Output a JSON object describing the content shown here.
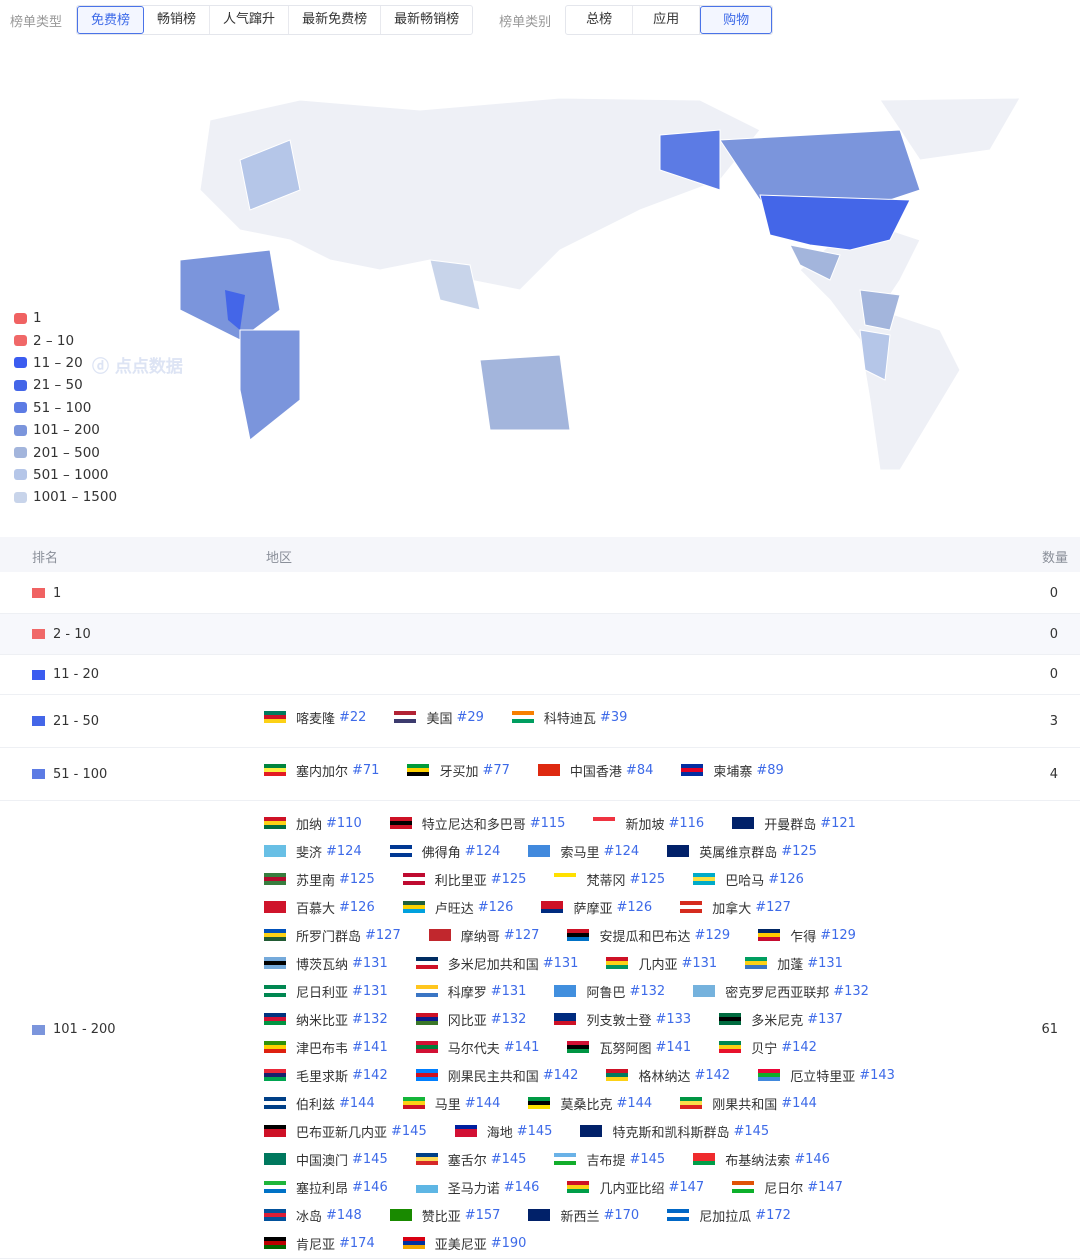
{
  "toolbar": {
    "type_label": "榜单类型",
    "types": [
      "免费榜",
      "畅销榜",
      "人气蹿升",
      "最新免费榜",
      "最新畅销榜"
    ],
    "active_type": 0,
    "cat_label": "榜单类别",
    "cats": [
      "总榜",
      "应用",
      "购物"
    ],
    "active_cat": 2
  },
  "legend": [
    {
      "label": "1",
      "color": "#f06262"
    },
    {
      "label": "2 – 10",
      "color": "#f06868"
    },
    {
      "label": "11 – 20",
      "color": "#3b5cf0"
    },
    {
      "label": "21 – 50",
      "color": "#4466e8"
    },
    {
      "label": "51 – 100",
      "color": "#5c7be4"
    },
    {
      "label": "101 – 200",
      "color": "#7b95dc"
    },
    {
      "label": "201 – 500",
      "color": "#a3b5dc"
    },
    {
      "label": "501 – 1000",
      "color": "#b5c6e8"
    },
    {
      "label": "1001 – 1500",
      "color": "#c8d4ea"
    }
  ],
  "watermark": "点点数据",
  "table": {
    "headers": [
      "排名",
      "地区",
      "数量"
    ],
    "rows": [
      {
        "range": "1",
        "color": "#f06262",
        "count": "0",
        "lines": []
      },
      {
        "range": "2 - 10",
        "color": "#f06868",
        "count": "0",
        "lines": []
      },
      {
        "range": "11 - 20",
        "color": "#3b5cf0",
        "count": "0",
        "lines": []
      },
      {
        "range": "21 - 50",
        "color": "#4466e8",
        "count": "3",
        "lines": [
          [
            [
              "喀麦隆",
              "#22",
              [
                "#007a5e",
                "#ce1126",
                "#fcd116"
              ]
            ],
            [
              "美国",
              "#29",
              [
                "#b22234",
                "#fff",
                "#3c3b6e"
              ]
            ],
            [
              "科特迪瓦",
              "#39",
              [
                "#f77f00",
                "#fff",
                "#009e60"
              ]
            ]
          ]
        ]
      },
      {
        "range": "51 - 100",
        "color": "#5c7be4",
        "count": "4",
        "lines": [
          [
            [
              "塞内加尔",
              "#71",
              [
                "#00853f",
                "#fdef42",
                "#e31b23"
              ]
            ],
            [
              "牙买加",
              "#77",
              [
                "#009b3a",
                "#fed100",
                "#000"
              ]
            ],
            [
              "中国香港",
              "#84",
              [
                "#de2910",
                "#de2910",
                "#de2910"
              ]
            ],
            [
              "柬埔寨",
              "#89",
              [
                "#032ea1",
                "#e00025",
                "#032ea1"
              ]
            ]
          ]
        ]
      },
      {
        "range": "101 - 200",
        "color": "#7b95dc",
        "count": "61",
        "lines": [
          [
            [
              "加纳",
              "#110",
              [
                "#ce1126",
                "#fcd116",
                "#006b3f"
              ]
            ],
            [
              "特立尼达和多巴哥",
              "#115",
              [
                "#ce1126",
                "#000",
                "#ce1126"
              ]
            ],
            [
              "新加坡",
              "#116",
              [
                "#ef3340",
                "#fff",
                "#fff"
              ]
            ],
            [
              "开曼群岛",
              "#121",
              [
                "#012169",
                "#012169",
                "#012169"
              ]
            ]
          ],
          [
            [
              "斐济",
              "#124",
              [
                "#68bfe5",
                "#68bfe5",
                "#68bfe5"
              ]
            ],
            [
              "佛得角",
              "#124",
              [
                "#003893",
                "#fff",
                "#003893"
              ]
            ],
            [
              "索马里",
              "#124",
              [
                "#4189dd",
                "#4189dd",
                "#4189dd"
              ]
            ],
            [
              "英属维京群岛",
              "#125",
              [
                "#012169",
                "#012169",
                "#012169"
              ]
            ]
          ],
          [
            [
              "苏里南",
              "#125",
              [
                "#377e3f",
                "#b40a2d",
                "#377e3f"
              ]
            ],
            [
              "利比里亚",
              "#125",
              [
                "#bf0a30",
                "#fff",
                "#bf0a30"
              ]
            ],
            [
              "梵蒂冈",
              "#125",
              [
                "#ffe000",
                "#fff",
                "#fff"
              ]
            ],
            [
              "巴哈马",
              "#126",
              [
                "#00abc9",
                "#fae042",
                "#00abc9"
              ]
            ]
          ],
          [
            [
              "百慕大",
              "#126",
              [
                "#cf142b",
                "#cf142b",
                "#cf142b"
              ]
            ],
            [
              "卢旺达",
              "#126",
              [
                "#20603d",
                "#fad201",
                "#00a1de"
              ]
            ],
            [
              "萨摩亚",
              "#126",
              [
                "#ce1126",
                "#ce1126",
                "#002b7f"
              ]
            ],
            [
              "加拿大",
              "#127",
              [
                "#d52b1e",
                "#fff",
                "#d52b1e"
              ]
            ]
          ],
          [
            [
              "所罗门群岛",
              "#127",
              [
                "#0051ba",
                "#fcd116",
                "#215b33"
              ]
            ],
            [
              "摩纳哥",
              "#127",
              [
                "#c1272d",
                "#c1272d",
                "#c1272d"
              ]
            ],
            [
              "安提瓜和巴布达",
              "#129",
              [
                "#ce1126",
                "#000",
                "#0072c6"
              ]
            ],
            [
              "乍得",
              "#129",
              [
                "#002664",
                "#fecb00",
                "#c60c30"
              ]
            ]
          ],
          [
            [
              "博茨瓦纳",
              "#131",
              [
                "#75aadb",
                "#000",
                "#75aadb"
              ]
            ],
            [
              "多米尼加共和国",
              "#131",
              [
                "#002d62",
                "#fff",
                "#ce1126"
              ]
            ],
            [
              "几内亚",
              "#131",
              [
                "#ce1126",
                "#fcd116",
                "#009460"
              ]
            ],
            [
              "加蓬",
              "#131",
              [
                "#009e60",
                "#fcd116",
                "#3a75c4"
              ]
            ]
          ],
          [
            [
              "尼日利亚",
              "#131",
              [
                "#008751",
                "#fff",
                "#008751"
              ]
            ],
            [
              "科摩罗",
              "#131",
              [
                "#ffc61e",
                "#fff",
                "#3a75c4"
              ]
            ],
            [
              "阿鲁巴",
              "#132",
              [
                "#418fde",
                "#418fde",
                "#418fde"
              ]
            ],
            [
              "密克罗尼西亚联邦",
              "#132",
              [
                "#75b2dd",
                "#75b2dd",
                "#75b2dd"
              ]
            ]
          ],
          [
            [
              "纳米比亚",
              "#132",
              [
                "#003580",
                "#d21034",
                "#009543"
              ]
            ],
            [
              "冈比亚",
              "#132",
              [
                "#ce1126",
                "#0c1c8c",
                "#3a7728"
              ]
            ],
            [
              "列支敦士登",
              "#133",
              [
                "#002b7f",
                "#002b7f",
                "#ce1126"
              ]
            ],
            [
              "多米尼克",
              "#137",
              [
                "#006b3f",
                "#000",
                "#006b3f"
              ]
            ]
          ],
          [
            [
              "津巴布韦",
              "#141",
              [
                "#319208",
                "#ffd200",
                "#de2010"
              ]
            ],
            [
              "马尔代夫",
              "#141",
              [
                "#d21034",
                "#007e3a",
                "#d21034"
              ]
            ],
            [
              "瓦努阿图",
              "#141",
              [
                "#d21034",
                "#000",
                "#009543"
              ]
            ],
            [
              "贝宁",
              "#142",
              [
                "#008751",
                "#fcd116",
                "#e8112d"
              ]
            ]
          ],
          [
            [
              "毛里求斯",
              "#142",
              [
                "#ea2839",
                "#1a206d",
                "#00a551"
              ]
            ],
            [
              "刚果民主共和国",
              "#142",
              [
                "#007fff",
                "#ce1021",
                "#007fff"
              ]
            ],
            [
              "格林纳达",
              "#142",
              [
                "#ce1126",
                "#007a5e",
                "#fcd116"
              ]
            ],
            [
              "厄立特里亚",
              "#143",
              [
                "#ea0437",
                "#12ad2b",
                "#4189dd"
              ]
            ]
          ],
          [
            [
              "伯利兹",
              "#144",
              [
                "#003f87",
                "#fff",
                "#003f87"
              ]
            ],
            [
              "马里",
              "#144",
              [
                "#14b53a",
                "#fcd116",
                "#ce1126"
              ]
            ],
            [
              "莫桑比克",
              "#144",
              [
                "#009a44",
                "#000",
                "#fce100"
              ]
            ],
            [
              "刚果共和国",
              "#144",
              [
                "#009543",
                "#fbde4a",
                "#dc241f"
              ]
            ]
          ],
          [
            [
              "巴布亚新几内亚",
              "#145",
              [
                "#000",
                "#ce1126",
                "#ce1126"
              ]
            ],
            [
              "海地",
              "#145",
              [
                "#00209f",
                "#d21034",
                "#d21034"
              ]
            ],
            [
              "特克斯和凯科斯群岛",
              "#145",
              [
                "#012169",
                "#012169",
                "#012169"
              ]
            ]
          ],
          [
            [
              "中国澳门",
              "#145",
              [
                "#00785e",
                "#00785e",
                "#00785e"
              ]
            ],
            [
              "塞舌尔",
              "#145",
              [
                "#003f87",
                "#fcd856",
                "#d62828"
              ]
            ],
            [
              "吉布提",
              "#145",
              [
                "#6ab2e7",
                "#fff",
                "#12ad2b"
              ]
            ],
            [
              "布基纳法索",
              "#146",
              [
                "#ef2b2d",
                "#ef2b2d",
                "#009e49"
              ]
            ]
          ],
          [
            [
              "塞拉利昂",
              "#146",
              [
                "#1eb53a",
                "#fff",
                "#0072c6"
              ]
            ],
            [
              "圣马力诺",
              "#146",
              [
                "#fff",
                "#5eb6e4",
                "#5eb6e4"
              ]
            ],
            [
              "几内亚比绍",
              "#147",
              [
                "#ce1126",
                "#fcd116",
                "#009e49"
              ]
            ],
            [
              "尼日尔",
              "#147",
              [
                "#e05206",
                "#fff",
                "#0db02b"
              ]
            ]
          ],
          [
            [
              "冰岛",
              "#148",
              [
                "#02529c",
                "#dc1e35",
                "#02529c"
              ]
            ],
            [
              "赞比亚",
              "#157",
              [
                "#198a00",
                "#198a00",
                "#198a00"
              ]
            ],
            [
              "新西兰",
              "#170",
              [
                "#012169",
                "#012169",
                "#012169"
              ]
            ],
            [
              "尼加拉瓜",
              "#172",
              [
                "#0067c6",
                "#fff",
                "#0067c6"
              ]
            ]
          ],
          [
            [
              "肯尼亚",
              "#174",
              [
                "#000",
                "#bb0000",
                "#006600"
              ]
            ],
            [
              "亚美尼亚",
              "#190",
              [
                "#d90012",
                "#0033a0",
                "#f2a800"
              ]
            ]
          ]
        ]
      }
    ]
  }
}
